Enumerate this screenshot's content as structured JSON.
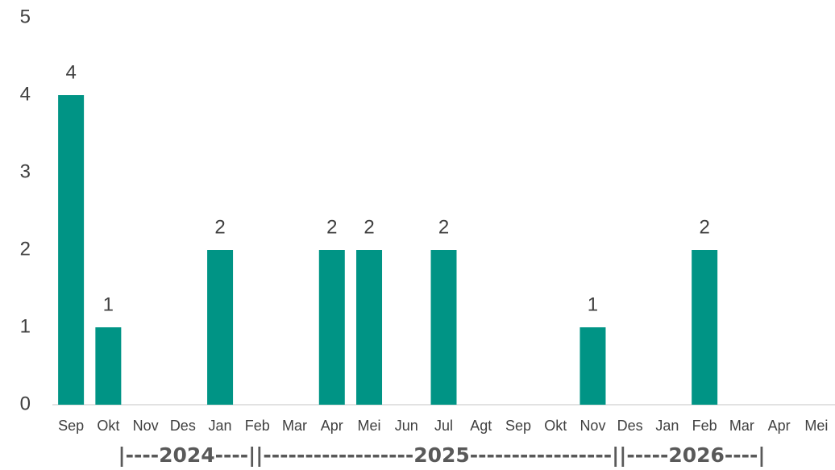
{
  "chart_data": {
    "type": "bar",
    "categories": [
      "Sep",
      "Okt",
      "Nov",
      "Des",
      "Jan",
      "Feb",
      "Mar",
      "Apr",
      "Mei",
      "Jun",
      "Jul",
      "Agt",
      "Sep",
      "Okt",
      "Nov",
      "Des",
      "Jan",
      "Feb",
      "Mar",
      "Apr",
      "Mei"
    ],
    "values": [
      4,
      1,
      0,
      0,
      2,
      0,
      0,
      2,
      2,
      0,
      2,
      0,
      0,
      0,
      1,
      0,
      0,
      2,
      0,
      0,
      0
    ],
    "color": "#009485",
    "ylim": [
      0,
      5
    ],
    "yticks": [
      0,
      1,
      2,
      3,
      4,
      5
    ],
    "grid": false,
    "hide_zero_labels": true,
    "x_group_label": "|----2024----||------------------2025-----------------||-----2026----|"
  }
}
